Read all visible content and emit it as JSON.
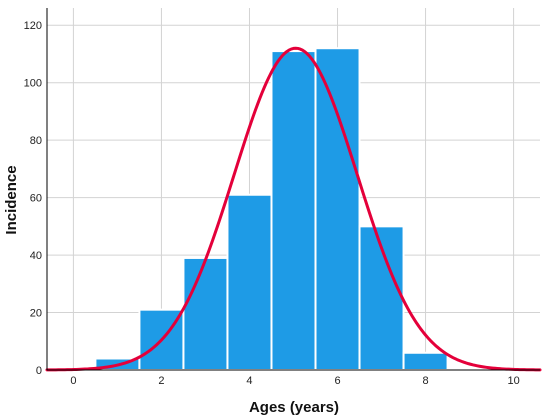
{
  "chart_data": {
    "type": "bar",
    "title": "",
    "xlabel": "Ages (years)",
    "ylabel": "Incidence",
    "xlim": [
      -0.6,
      10.6
    ],
    "ylim": [
      0,
      126
    ],
    "x_ticks": [
      0,
      2,
      4,
      6,
      8,
      10
    ],
    "y_ticks": [
      0,
      20,
      40,
      60,
      80,
      100,
      120
    ],
    "grid": true,
    "bins": [
      {
        "start": 0.5,
        "end": 1.5,
        "value": 4
      },
      {
        "start": 1.5,
        "end": 2.5,
        "value": 21
      },
      {
        "start": 2.5,
        "end": 3.5,
        "value": 39
      },
      {
        "start": 3.5,
        "end": 4.5,
        "value": 61
      },
      {
        "start": 4.5,
        "end": 5.5,
        "value": 111
      },
      {
        "start": 5.5,
        "end": 6.5,
        "value": 112
      },
      {
        "start": 6.5,
        "end": 7.5,
        "value": 50
      },
      {
        "start": 7.5,
        "end": 8.5,
        "value": 6
      }
    ],
    "normal_curve": {
      "mean": 5.05,
      "sd": 1.4,
      "peak": 112
    },
    "colors": {
      "bar_fill": "#1E9BE6",
      "bar_stroke": "#ffffff",
      "curve": "#E4003A",
      "grid": "#D3D3D3",
      "axis": "#000000"
    }
  }
}
